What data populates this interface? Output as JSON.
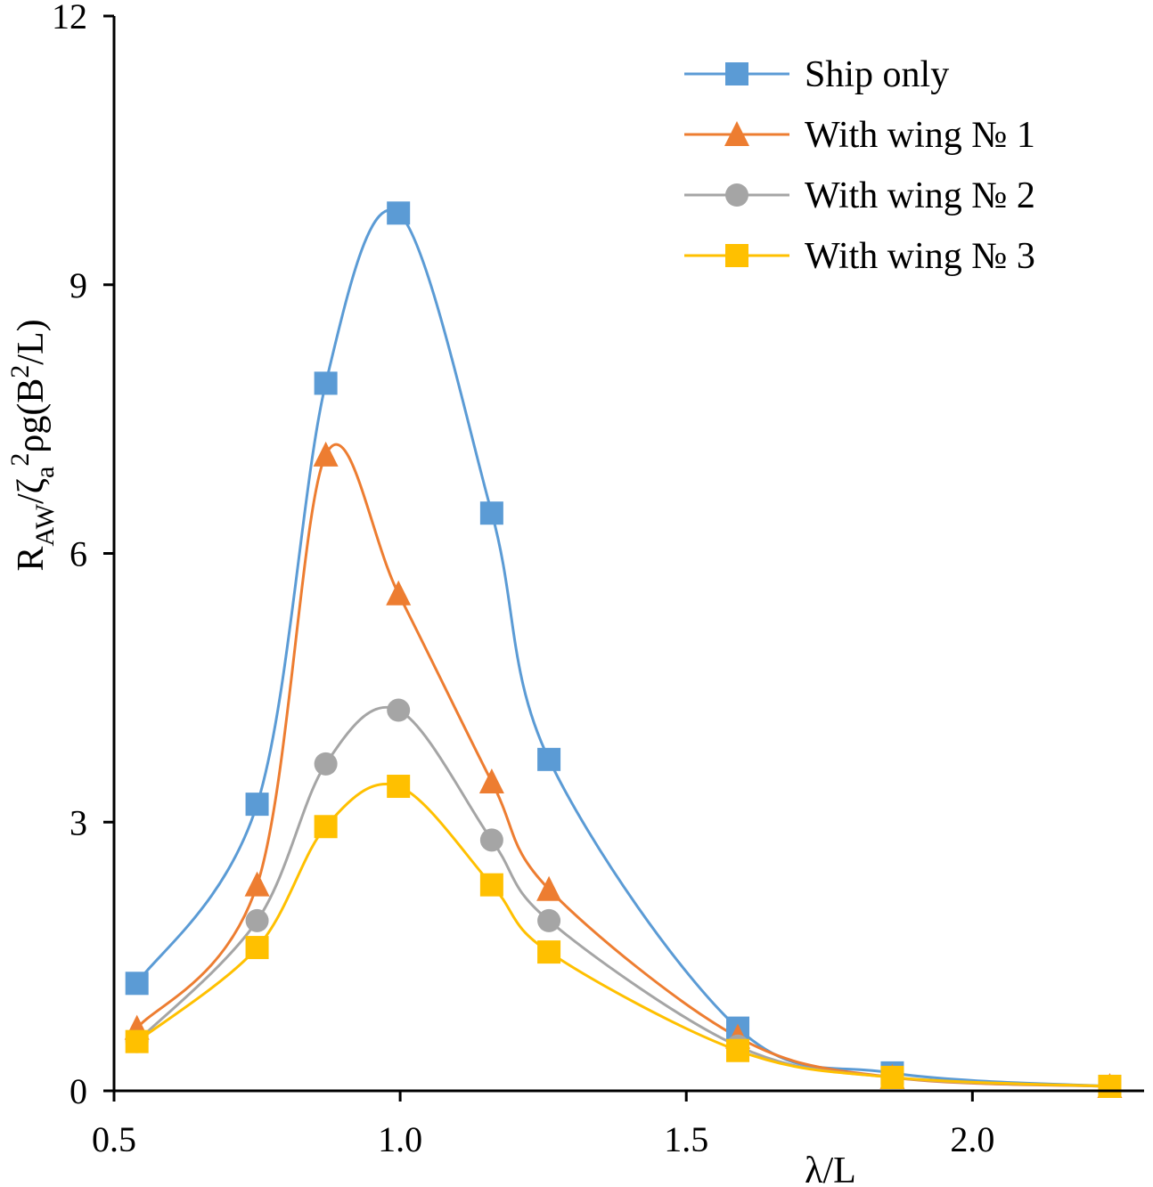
{
  "chart_data": {
    "type": "line",
    "title": "",
    "xlabel": "λ/L",
    "ylabel_parts": {
      "r": "R",
      "aw": "AW",
      "zeta": "/ζ",
      "a": "a",
      "sq": "2",
      "rhog": "ρg(B",
      "two": "2",
      "close": "/L)"
    },
    "xlim": [
      0.5,
      2.3
    ],
    "ylim": [
      0,
      12
    ],
    "xticks": [
      0.5,
      1.0,
      1.5,
      2.0
    ],
    "xtick_labels": [
      "0.5",
      "1.0",
      "1.5",
      "2.0"
    ],
    "yticks": [
      0,
      3,
      6,
      9,
      12
    ],
    "ytick_labels": [
      "0",
      "3",
      "6",
      "9",
      "12"
    ],
    "grid": false,
    "legend_position": "top-right",
    "series": [
      {
        "name": "Ship only",
        "color": "#5B9BD5",
        "marker": "square",
        "x": [
          0.54,
          0.75,
          0.87,
          0.997,
          1.16,
          1.26,
          1.59,
          1.86,
          2.24
        ],
        "y": [
          1.2,
          3.2,
          7.9,
          9.8,
          6.45,
          3.7,
          0.7,
          0.2,
          0.05
        ]
      },
      {
        "name": "With wing № 1",
        "color": "#ED7D31",
        "marker": "triangle",
        "x": [
          0.54,
          0.75,
          0.87,
          0.997,
          1.16,
          1.26,
          1.59,
          1.86,
          2.24
        ],
        "y": [
          0.7,
          2.3,
          7.1,
          5.55,
          3.45,
          2.25,
          0.6,
          0.15,
          0.05
        ]
      },
      {
        "name": "With wing № 2",
        "color": "#A5A5A5",
        "marker": "circle",
        "x": [
          0.54,
          0.75,
          0.87,
          0.997,
          1.16,
          1.26,
          1.59,
          1.86,
          2.24
        ],
        "y": [
          0.55,
          1.9,
          3.65,
          4.25,
          2.8,
          1.9,
          0.5,
          0.15,
          0.05
        ]
      },
      {
        "name": "With wing № 3",
        "color": "#FFC000",
        "marker": "square",
        "x": [
          0.54,
          0.75,
          0.87,
          0.997,
          1.16,
          1.26,
          1.59,
          1.86,
          2.24
        ],
        "y": [
          0.55,
          1.6,
          2.95,
          3.4,
          2.3,
          1.55,
          0.45,
          0.15,
          0.05
        ]
      }
    ]
  }
}
